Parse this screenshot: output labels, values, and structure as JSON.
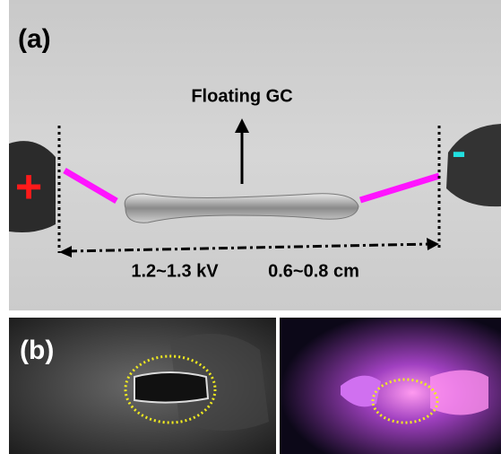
{
  "panel_a": {
    "label": "(a)",
    "annotation": "Floating GC",
    "anode": "+",
    "cathode": "-",
    "voltage": "1.2~1.3 kV",
    "gap": "0.6~0.8 cm"
  },
  "panel_b": {
    "label": "(b)"
  }
}
